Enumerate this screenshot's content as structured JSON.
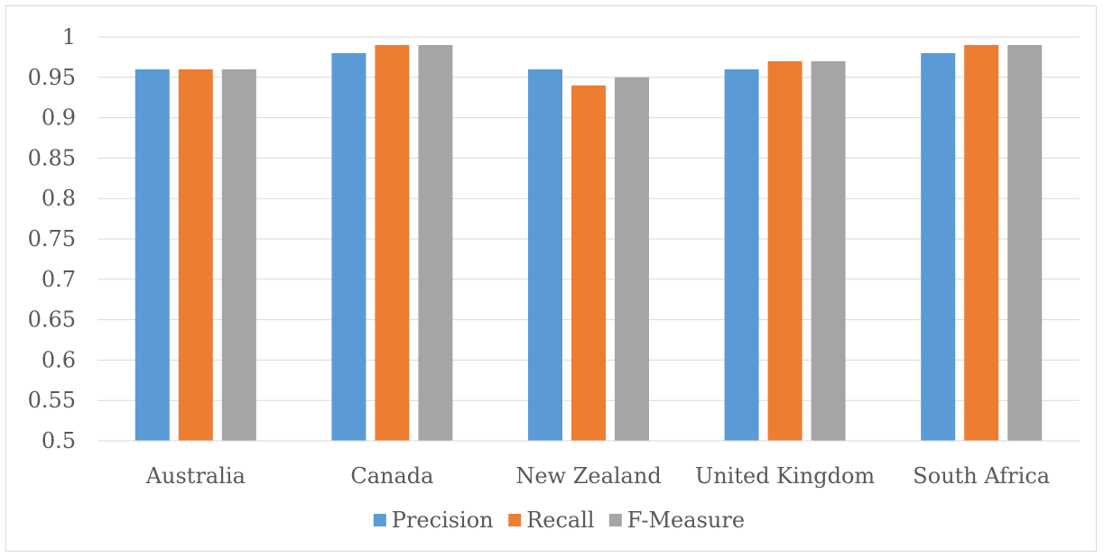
{
  "chart_data": {
    "type": "bar",
    "title": "",
    "xlabel": "",
    "ylabel": "",
    "categories": [
      "Australia",
      "Canada",
      "New Zealand",
      "United Kingdom",
      "South Africa"
    ],
    "series": [
      {
        "name": "Precision",
        "color": "#5b9bd5",
        "values": [
          0.96,
          0.98,
          0.96,
          0.96,
          0.98
        ]
      },
      {
        "name": "Recall",
        "color": "#ed7d31",
        "values": [
          0.96,
          0.99,
          0.94,
          0.97,
          0.99
        ]
      },
      {
        "name": "F-Measure",
        "color": "#a5a5a5",
        "values": [
          0.96,
          0.99,
          0.95,
          0.97,
          0.99
        ]
      }
    ],
    "ylim": [
      0.5,
      1
    ],
    "yticks": [
      "0.5",
      "0.55",
      "0.6",
      "0.65",
      "0.7",
      "0.75",
      "0.8",
      "0.85",
      "0.9",
      "0.95",
      "1"
    ],
    "grid": true,
    "legend_position": "bottom"
  }
}
